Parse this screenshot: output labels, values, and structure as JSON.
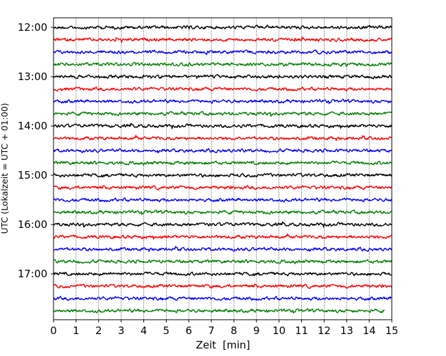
{
  "chart_data": {
    "type": "line",
    "xlabel": "Zeit  [min]",
    "ylabel": "UTC (Lokalzeit = UTC + 01:00)",
    "xlim": [
      0,
      15
    ],
    "x_ticks": [
      "0",
      "1",
      "2",
      "3",
      "4",
      "5",
      "6",
      "7",
      "8",
      "9",
      "10",
      "11",
      "12",
      "13",
      "14",
      "15"
    ],
    "y_tick_labels": [
      "12:00",
      "13:00",
      "14:00",
      "15:00",
      "16:00",
      "17:00"
    ],
    "trace_start_times": [
      "12:00",
      "12:15",
      "12:30",
      "12:45",
      "13:00",
      "13:15",
      "13:30",
      "13:45",
      "14:00",
      "14:15",
      "14:30",
      "14:45",
      "15:00",
      "15:15",
      "15:30",
      "15:45",
      "16:00",
      "16:15",
      "16:30",
      "16:45",
      "17:00",
      "17:15",
      "17:30",
      "17:45"
    ],
    "trace_colors": [
      "#000000",
      "#ff0000",
      "#0000ff",
      "#007f00"
    ],
    "last_trace_end_min": 14.7,
    "grid": {
      "x": true,
      "y": false,
      "style": "dotted"
    }
  }
}
